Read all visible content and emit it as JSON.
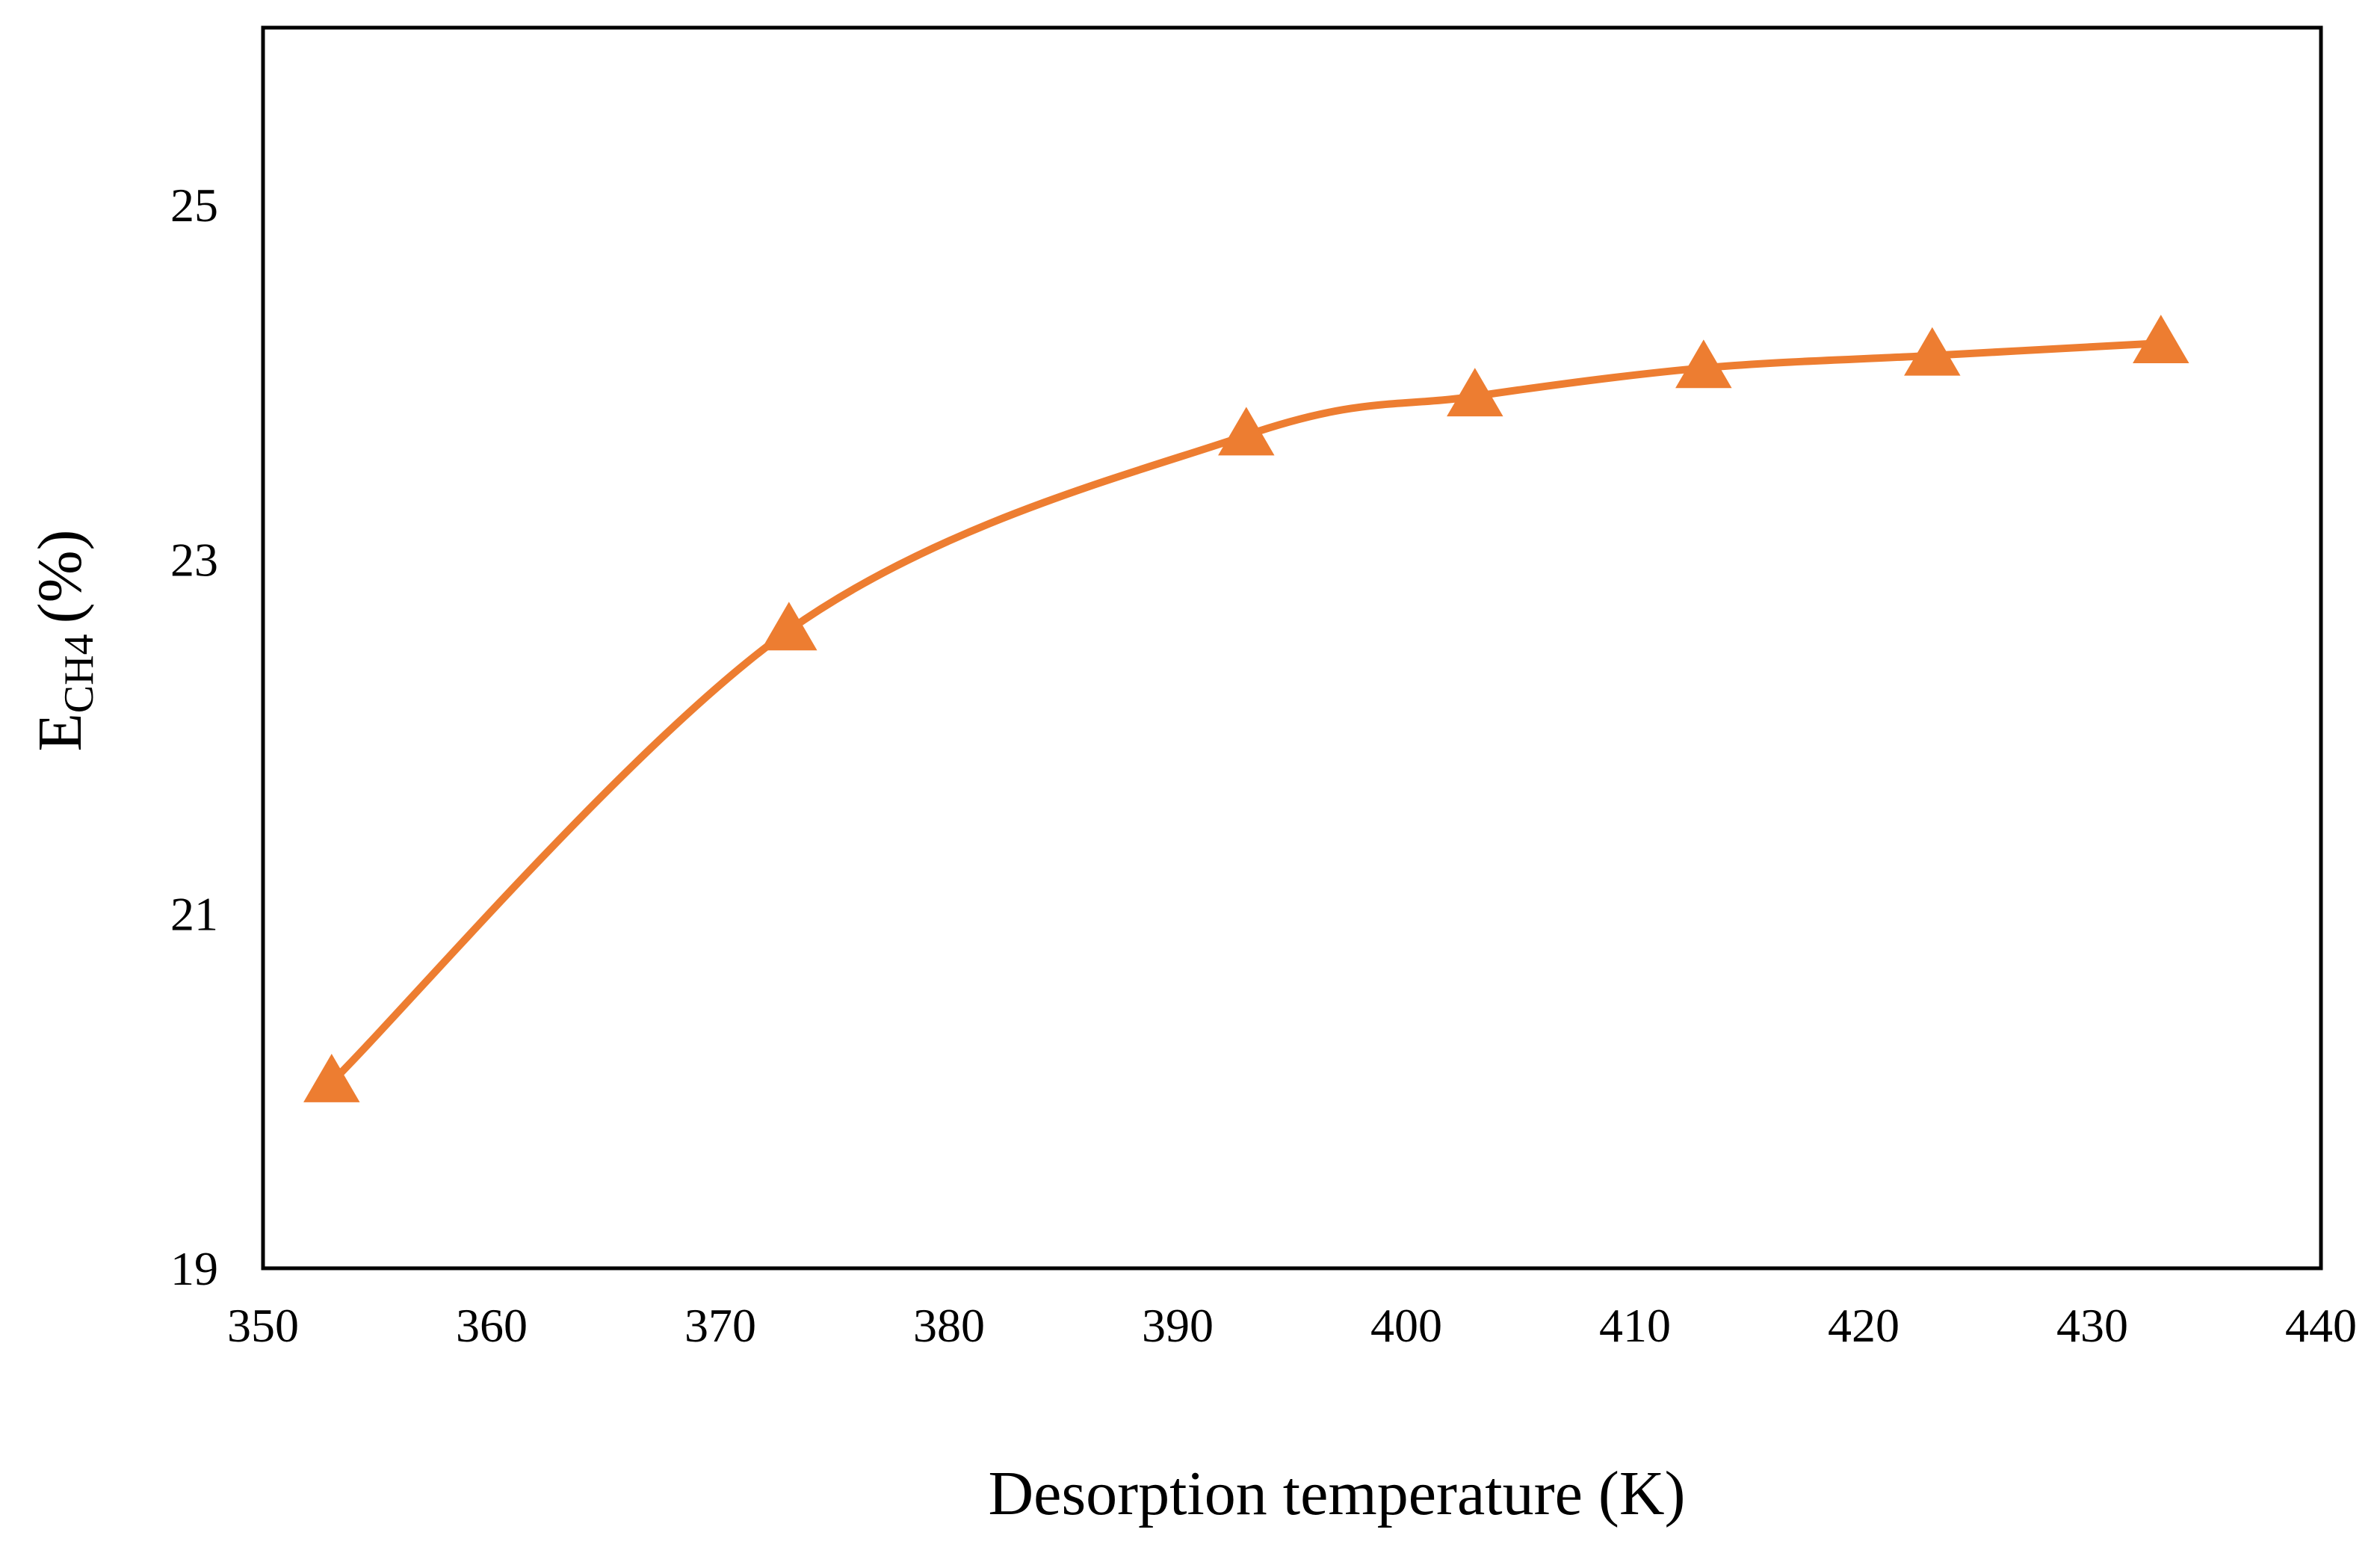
{
  "chart_data": {
    "type": "line",
    "title": "",
    "xlabel": "Desorption temperature (K)",
    "ylabel": {
      "main": "E",
      "subscript": "CH4",
      "unit": "(%)"
    },
    "xlim": [
      350,
      440
    ],
    "ylim": [
      19,
      26
    ],
    "xticks": [
      350,
      360,
      370,
      380,
      390,
      400,
      410,
      420,
      430,
      440
    ],
    "yticks": [
      19,
      21,
      23,
      25
    ],
    "series": [
      {
        "name": "E_CH4",
        "marker": "triangle",
        "color": "#ED7D31",
        "smooth": true,
        "x": [
          353,
          373,
          393,
          403,
          413,
          423,
          433
        ],
        "y": [
          20.05,
          22.6,
          23.7,
          23.92,
          24.08,
          24.15,
          24.22
        ]
      }
    ],
    "legend": "none",
    "grid": false
  }
}
